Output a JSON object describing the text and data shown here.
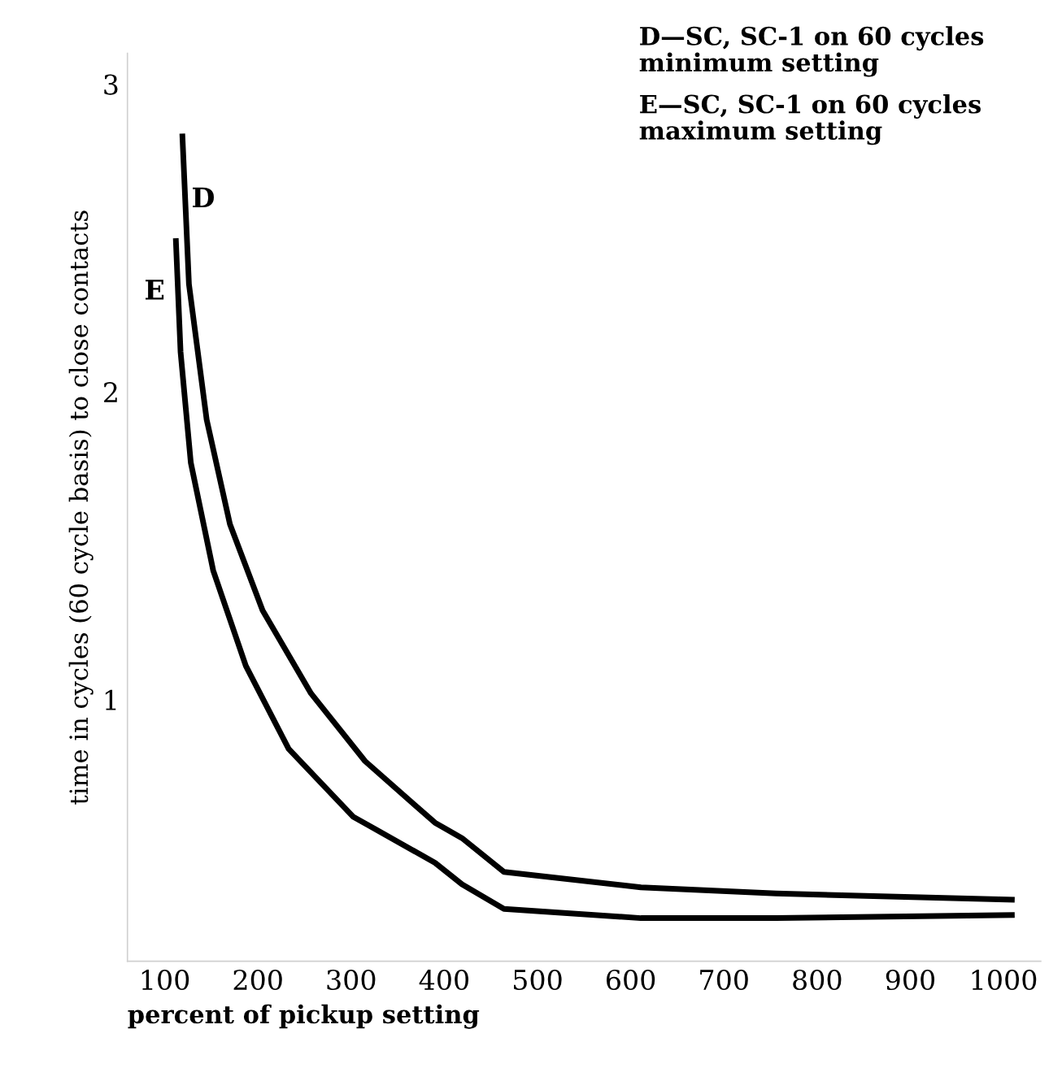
{
  "chart_data": {
    "type": "line",
    "xlabel": "percent of pickup setting",
    "ylabel": "time in cycles (60 cycle basis) to close contacts",
    "series": [
      {
        "color": "#000000",
        "x": [
          119,
          126,
          145,
          170,
          205,
          257,
          315,
          390,
          419,
          464,
          611,
          756,
          1009
        ],
        "values": [
          2.83,
          2.35,
          1.91,
          1.57,
          1.29,
          1.02,
          0.8,
          0.6,
          0.55,
          0.44,
          0.39,
          0.37,
          0.35
        ]
      },
      {
        "color": "#000000",
        "x": [
          112,
          117,
          128,
          152,
          187,
          233,
          302,
          390,
          419,
          464,
          611,
          756,
          1009
        ],
        "values": [
          2.49,
          2.13,
          1.77,
          1.42,
          1.11,
          0.84,
          0.62,
          0.47,
          0.4,
          0.32,
          0.29,
          0.29,
          0.3
        ]
      }
    ],
    "annotations": [
      {
        "text": "D",
        "x": 119,
        "y": 2.6
      },
      {
        "text": "E",
        "x": 112,
        "y": 2.3
      },
      "D—SC, SC-1 on 60 cycles\nminimum setting",
      "E—SC, SC-1 on 60 cycles\nmaximum setting"
    ],
    "xlim": [
      60,
      1040
    ],
    "ylim": [
      0.15,
      3.1
    ],
    "xticks": [
      100,
      200,
      300,
      400,
      500,
      600,
      700,
      800,
      900,
      1000
    ],
    "yticks": [
      1,
      2,
      3
    ],
    "grid": false,
    "legend": false,
    "marker": "none",
    "line_style": "solid"
  }
}
